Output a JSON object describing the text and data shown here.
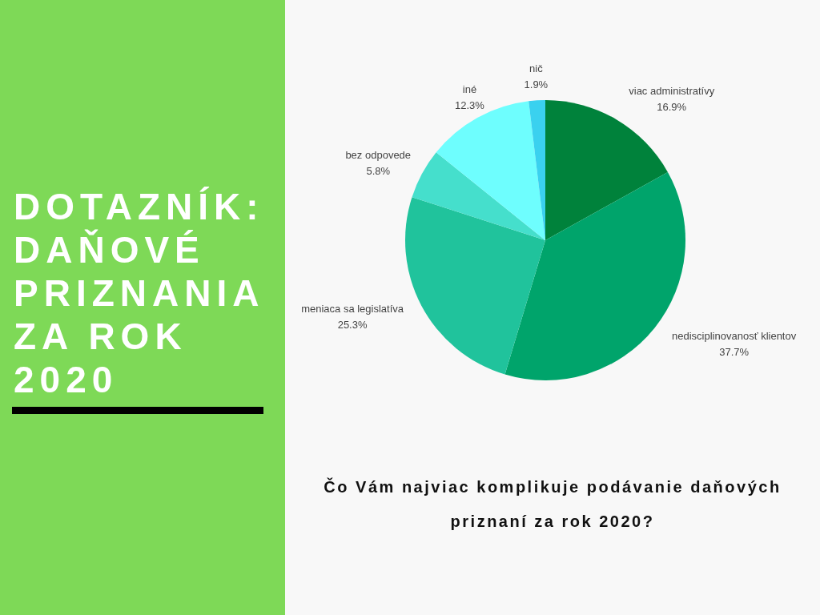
{
  "chart_data": {
    "type": "pie",
    "title": "DOTAZNÍK: DAŇOVÉ PRIZNANIA ZA ROK 2020",
    "subtitle": "Čo Vám najviac komplikuje podávanie daňových priznaní za rok 2020?",
    "categories": [
      "viac administratívy",
      "nedisciplinovanosť klientov",
      "meniaca sa legislatíva",
      "bez odpovede",
      "iné",
      "nič"
    ],
    "values": [
      16.9,
      37.7,
      25.3,
      5.8,
      12.3,
      1.9
    ],
    "colors": [
      "#00823b",
      "#00a46b",
      "#20c39c",
      "#45dfcc",
      "#6efefe",
      "#3ad1ef"
    ],
    "value_labels": [
      "16.9%",
      "37.7%",
      "25.3%",
      "5.8%",
      "12.3%",
      "1.9%"
    ]
  }
}
